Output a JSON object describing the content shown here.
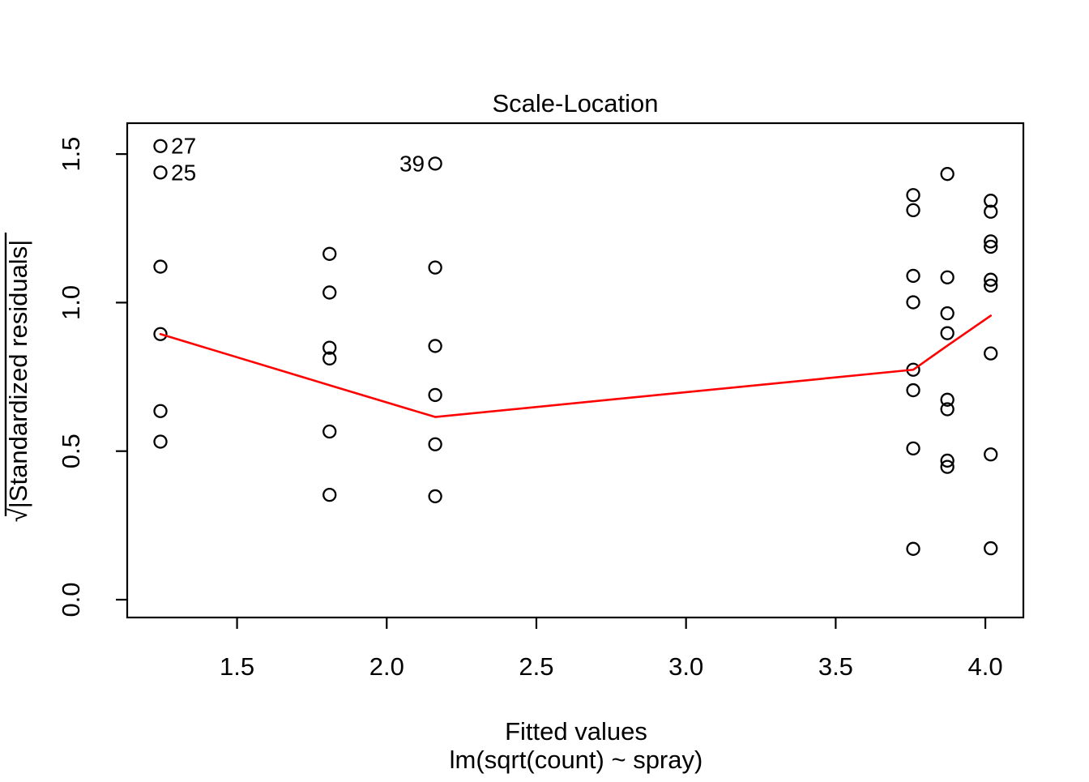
{
  "title": "Scale-Location",
  "x_axis_label": "Fitted values",
  "x_axis_sublabel": "lm(sqrt(count) ~ spray)",
  "y_axis_label": {
    "radical": "√",
    "body": "|Standardized residuals|"
  },
  "colors": {
    "background": "#FFFFFF",
    "points": "#000000",
    "smoother": "#FF0000",
    "text": "#000000",
    "box": "#000000"
  },
  "chart_data": {
    "type": "scatter",
    "title": "Scale-Location",
    "xlabel": "Fitted values",
    "xlabel_sub": "lm(sqrt(count) ~ spray)",
    "ylabel": "√|Standardized residuals|",
    "xlim": [
      1.133,
      4.127
    ],
    "ylim": [
      -0.06,
      1.604
    ],
    "grid": false,
    "x_ticks": [
      {
        "v": 1.5,
        "label": "1.5"
      },
      {
        "v": 2.0,
        "label": "2.0"
      },
      {
        "v": 2.5,
        "label": "2.5"
      },
      {
        "v": 3.0,
        "label": "3.0"
      },
      {
        "v": 3.5,
        "label": "3.5"
      },
      {
        "v": 4.0,
        "label": "4.0"
      }
    ],
    "y_ticks": [
      {
        "v": 0.0,
        "label": "0.0"
      },
      {
        "v": 0.5,
        "label": "0.5"
      },
      {
        "v": 1.0,
        "label": "1.0"
      },
      {
        "v": 1.5,
        "label": "1.5"
      }
    ],
    "groups": [
      {
        "fitted": 1.244,
        "values": [
          1.527,
          1.438,
          1.121,
          0.894,
          0.635,
          0.532
        ]
      },
      {
        "fitted": 1.809,
        "values": [
          1.164,
          1.034,
          0.848,
          0.812,
          0.566,
          0.353
        ]
      },
      {
        "fitted": 2.162,
        "values": [
          1.468,
          1.118,
          0.854,
          0.689,
          0.523,
          0.348
        ]
      },
      {
        "fitted": 3.759,
        "values": [
          1.362,
          1.311,
          1.09,
          1.001,
          0.774,
          0.705,
          0.509,
          0.171
        ]
      },
      {
        "fitted": 3.873,
        "values": [
          1.433,
          1.085,
          0.964,
          0.897,
          0.673,
          0.641,
          0.468,
          0.447
        ]
      },
      {
        "fitted": 4.018,
        "values": [
          1.343,
          1.306,
          1.206,
          1.188,
          1.077,
          1.057,
          0.829,
          0.489,
          0.173
        ]
      }
    ],
    "smoother": {
      "color": "#FF0000",
      "points": [
        [
          1.244,
          0.894
        ],
        [
          1.809,
          0.722
        ],
        [
          2.162,
          0.615
        ],
        [
          3.759,
          0.774
        ],
        [
          3.873,
          0.855
        ],
        [
          4.018,
          0.956
        ]
      ]
    },
    "labeled_points": [
      {
        "label": "27",
        "x": 1.244,
        "y": 1.527,
        "side": "right"
      },
      {
        "label": "25",
        "x": 1.244,
        "y": 1.438,
        "side": "right"
      },
      {
        "label": "39",
        "x": 2.162,
        "y": 1.468,
        "side": "left"
      }
    ]
  }
}
